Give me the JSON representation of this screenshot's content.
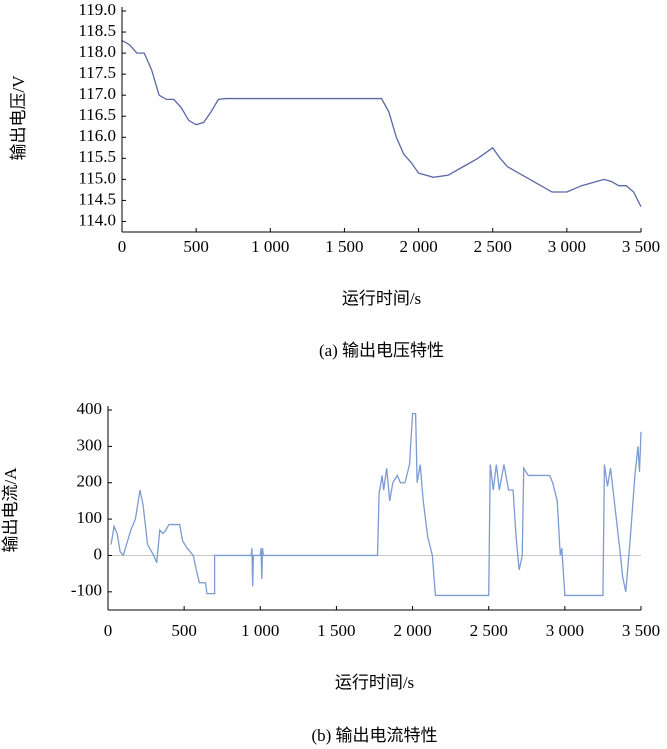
{
  "chart_data": [
    {
      "type": "line",
      "ylabel": "输出电压/V",
      "xlabel": "运行时间/s",
      "caption": "(a) 输出电压特性",
      "color": "#5a68a6",
      "xlim": [
        0,
        3500
      ],
      "xticks": [
        0,
        500,
        {
          "value": 1000,
          "label": "1 000"
        },
        {
          "value": 1500,
          "label": "1 500"
        },
        {
          "value": 2000,
          "label": "2 000"
        },
        {
          "value": 2500,
          "label": "2 500"
        },
        {
          "value": 3000,
          "label": "3 000"
        },
        {
          "value": 3500,
          "label": "3 500"
        }
      ],
      "ylim": [
        113.75,
        119.0
      ],
      "yticks": [
        {
          "value": 114,
          "label": "114.0"
        },
        {
          "value": 114.5,
          "label": "114.5"
        },
        {
          "value": 115,
          "label": "115.0"
        },
        {
          "value": 115.5,
          "label": "115.5"
        },
        {
          "value": 116,
          "label": "116.0"
        },
        {
          "value": 116.5,
          "label": "116.5"
        },
        {
          "value": 117,
          "label": "117.0"
        },
        {
          "value": 117.5,
          "label": "117.5"
        },
        {
          "value": 118,
          "label": "118.0"
        },
        {
          "value": 118.5,
          "label": "118.5"
        },
        {
          "value": 119,
          "label": "119.0"
        }
      ],
      "x": [
        0,
        50,
        100,
        150,
        200,
        250,
        300,
        350,
        400,
        450,
        500,
        550,
        600,
        650,
        700,
        1000,
        1500,
        1750,
        1800,
        1850,
        1900,
        1950,
        2000,
        2100,
        2200,
        2300,
        2400,
        2500,
        2550,
        2600,
        2700,
        2800,
        2900,
        3000,
        3100,
        3200,
        3250,
        3300,
        3350,
        3400,
        3450,
        3500
      ],
      "values": [
        118.3,
        118.2,
        118.0,
        118.0,
        117.6,
        117.0,
        116.9,
        116.9,
        116.7,
        116.4,
        116.3,
        116.35,
        116.6,
        116.9,
        116.92,
        116.92,
        116.92,
        116.92,
        116.6,
        116.0,
        115.6,
        115.4,
        115.15,
        115.05,
        115.1,
        115.3,
        115.5,
        115.75,
        115.5,
        115.3,
        115.1,
        114.9,
        114.7,
        114.7,
        114.85,
        114.95,
        115.0,
        114.95,
        114.85,
        114.85,
        114.7,
        114.35
      ]
    },
    {
      "type": "line",
      "ylabel": "输出电流/A",
      "xlabel": "运行时间/s",
      "caption": "(b) 输出电流特性",
      "color": "#7b9bd3",
      "hline": 0,
      "xlim": [
        0,
        3500
      ],
      "xticks": [
        0,
        500,
        {
          "value": 1000,
          "label": "1 000"
        },
        {
          "value": 1500,
          "label": "1 500"
        },
        {
          "value": 2000,
          "label": "2 000"
        },
        {
          "value": 2500,
          "label": "2 500"
        },
        {
          "value": 3000,
          "label": "3 000"
        },
        {
          "value": 3500,
          "label": "3 500"
        }
      ],
      "ylim": [
        -150,
        400
      ],
      "yticks": [
        -100,
        0,
        100,
        200,
        300,
        400
      ],
      "x": [
        20,
        40,
        60,
        80,
        100,
        150,
        180,
        210,
        230,
        260,
        300,
        320,
        340,
        360,
        380,
        400,
        470,
        490,
        520,
        560,
        580,
        600,
        640,
        650,
        700,
        700,
        940,
        945,
        950,
        955,
        1000,
        1005,
        1010,
        1015,
        1020,
        1770,
        1780,
        1800,
        1810,
        1830,
        1850,
        1870,
        1900,
        1920,
        1950,
        1980,
        2000,
        2020,
        2030,
        2050,
        2070,
        2100,
        2130,
        2150,
        2500,
        2510,
        2530,
        2550,
        2570,
        2600,
        2630,
        2660,
        2680,
        2700,
        2720,
        2730,
        2760,
        2900,
        2920,
        2950,
        2970,
        2980,
        3000,
        3250,
        3260,
        3280,
        3300,
        3330,
        3360,
        3380,
        3400,
        3430,
        3460,
        3480,
        3490,
        3500
      ],
      "values": [
        30,
        80,
        60,
        10,
        0,
        70,
        100,
        180,
        140,
        30,
        0,
        -20,
        70,
        60,
        70,
        85,
        85,
        40,
        20,
        0,
        -40,
        -75,
        -75,
        -105,
        -105,
        0,
        0,
        20,
        -85,
        0,
        0,
        20,
        -65,
        20,
        0,
        0,
        170,
        220,
        180,
        240,
        150,
        200,
        220,
        200,
        200,
        250,
        390,
        390,
        200,
        250,
        150,
        50,
        0,
        -110,
        -110,
        250,
        180,
        250,
        180,
        250,
        180,
        180,
        50,
        -40,
        0,
        240,
        220,
        220,
        200,
        150,
        0,
        20,
        -110,
        -110,
        250,
        190,
        240,
        130,
        20,
        -60,
        -100,
        50,
        220,
        300,
        230,
        340
      ]
    }
  ]
}
